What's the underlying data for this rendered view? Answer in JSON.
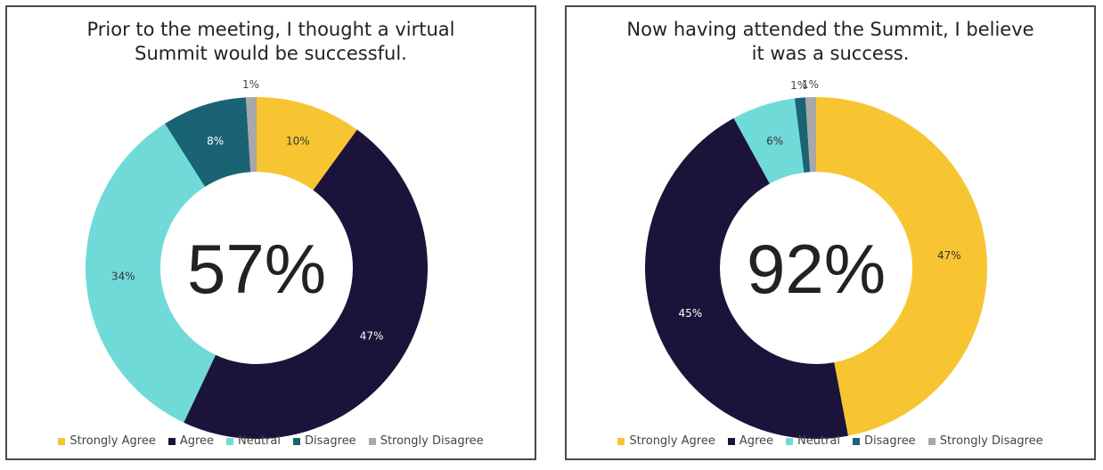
{
  "chart_data": [
    {
      "type": "pie",
      "title": "Prior to the meeting, I thought a virtual Summit would be successful.",
      "center_label": "57%",
      "categories": [
        "Strongly Agree",
        "Agree",
        "Neutral",
        "Disagree",
        "Strongly Disagree"
      ],
      "values": [
        10,
        47,
        34,
        8,
        1
      ],
      "value_labels": [
        "10%",
        "47%",
        "34%",
        "8%",
        "1%"
      ],
      "colors": [
        "#f7c531",
        "#1b1339",
        "#70dad8",
        "#1a6375",
        "#a8a8a8"
      ],
      "legend_position": "bottom"
    },
    {
      "type": "pie",
      "title": "Now having attended the Summit, I believe it was a success.",
      "center_label": "92%",
      "categories": [
        "Strongly Agree",
        "Agree",
        "Neutral",
        "Disagree",
        "Strongly Disagree"
      ],
      "values": [
        47,
        45,
        6,
        1,
        1
      ],
      "value_labels": [
        "47%",
        "45%",
        "6%",
        "1%",
        "1%"
      ],
      "colors": [
        "#f7c531",
        "#1b1339",
        "#70dad8",
        "#1a6375",
        "#a8a8a8"
      ],
      "legend_position": "bottom"
    }
  ]
}
